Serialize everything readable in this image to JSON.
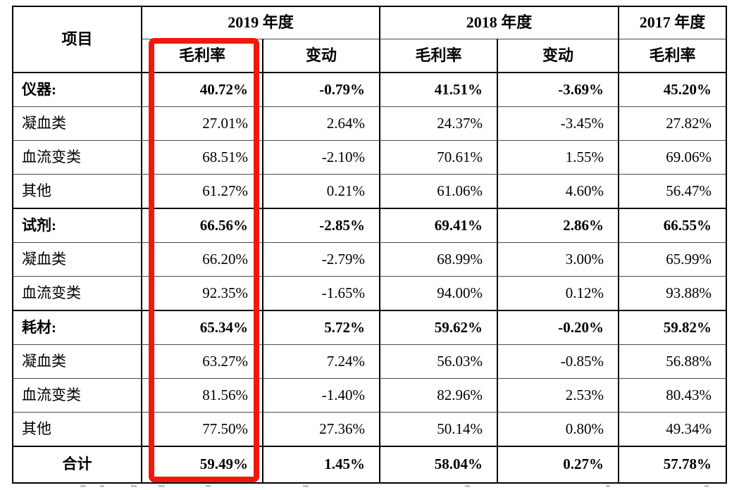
{
  "table": {
    "header": {
      "item_label": "项目",
      "year_groups": [
        {
          "label": "2019 年度",
          "columns": [
            "毛利率",
            "变动"
          ]
        },
        {
          "label": "2018 年度",
          "columns": [
            "毛利率",
            "变动"
          ]
        },
        {
          "label": "2017 年度",
          "columns": [
            "毛利率"
          ]
        }
      ]
    },
    "rows": [
      {
        "label": "仪器:",
        "bold": true,
        "total": false,
        "values": [
          "40.72%",
          "-0.79%",
          "41.51%",
          "-3.69%",
          "45.20%"
        ]
      },
      {
        "label": "凝血类",
        "bold": false,
        "total": false,
        "values": [
          "27.01%",
          "2.64%",
          "24.37%",
          "-3.45%",
          "27.82%"
        ]
      },
      {
        "label": "血流变类",
        "bold": false,
        "total": false,
        "values": [
          "68.51%",
          "-2.10%",
          "70.61%",
          "1.55%",
          "69.06%"
        ]
      },
      {
        "label": "其他",
        "bold": false,
        "total": false,
        "values": [
          "61.27%",
          "0.21%",
          "61.06%",
          "4.60%",
          "56.47%"
        ]
      },
      {
        "label": "试剂:",
        "bold": true,
        "total": false,
        "values": [
          "66.56%",
          "-2.85%",
          "69.41%",
          "2.86%",
          "66.55%"
        ]
      },
      {
        "label": "凝血类",
        "bold": false,
        "total": false,
        "values": [
          "66.20%",
          "-2.79%",
          "68.99%",
          "3.00%",
          "65.99%"
        ]
      },
      {
        "label": "血流变类",
        "bold": false,
        "total": false,
        "values": [
          "92.35%",
          "-1.65%",
          "94.00%",
          "0.12%",
          "93.88%"
        ]
      },
      {
        "label": "耗材:",
        "bold": true,
        "total": false,
        "values": [
          "65.34%",
          "5.72%",
          "59.62%",
          "-0.20%",
          "59.82%"
        ]
      },
      {
        "label": "凝血类",
        "bold": false,
        "total": false,
        "values": [
          "63.27%",
          "7.24%",
          "56.03%",
          "-0.85%",
          "56.88%"
        ]
      },
      {
        "label": "血流变类",
        "bold": false,
        "total": false,
        "values": [
          "81.56%",
          "-1.40%",
          "82.96%",
          "2.53%",
          "80.43%"
        ]
      },
      {
        "label": "其他",
        "bold": false,
        "total": false,
        "values": [
          "77.50%",
          "27.36%",
          "50.14%",
          "0.80%",
          "49.34%"
        ]
      },
      {
        "label": "合计",
        "bold": true,
        "total": true,
        "values": [
          "59.49%",
          "1.45%",
          "58.04%",
          "0.27%",
          "57.78%"
        ]
      }
    ],
    "highlight": {
      "color": "#f2170c",
      "target": "2019 毛利率 column"
    }
  }
}
